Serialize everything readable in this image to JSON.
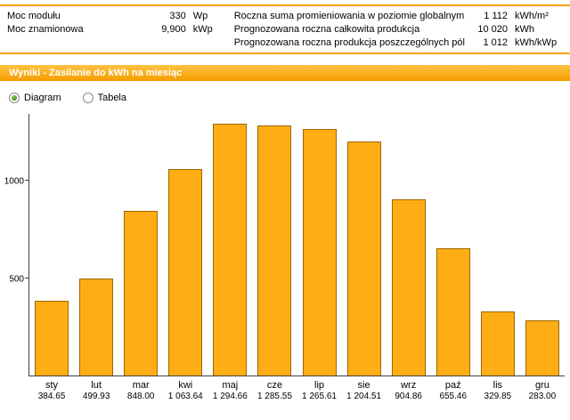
{
  "info": {
    "left": [
      {
        "label": "Moc modułu",
        "value": "330",
        "unit": "Wp"
      },
      {
        "label": "Moc znamionowa",
        "value": "9,900",
        "unit": "kWp"
      }
    ],
    "right": [
      {
        "label": "Roczna suma promieniowania w poziomie globalnym",
        "value": "1 112",
        "unit": "kWh/m²"
      },
      {
        "label": "Prognozowana roczna całkowita produkcja",
        "value": "10 020",
        "unit": "kWh"
      },
      {
        "label": "Prognozowana roczna produkcja poszczególnych pól",
        "value": "1 012",
        "unit": "kWh/kWp"
      }
    ]
  },
  "section": {
    "title": "Wyniki - Zasilanie do kWh na miesiąc"
  },
  "view_toggle": {
    "options": [
      {
        "label": "Diagram",
        "selected": true
      },
      {
        "label": "Tabela",
        "selected": false
      }
    ]
  },
  "colors": {
    "accent_orange": "#F7A300",
    "bar_fill": "#FFAD14",
    "bar_border": "#9C6700"
  },
  "chart_data": {
    "type": "bar",
    "title": "Zasilanie do kWh na miesiąc",
    "categories": [
      "sty",
      "lut",
      "mar",
      "kwi",
      "maj",
      "cze",
      "lip",
      "sie",
      "wrz",
      "paź",
      "lis",
      "gru"
    ],
    "values": [
      384.65,
      499.93,
      848.0,
      1063.64,
      1294.66,
      1285.55,
      1265.61,
      1204.51,
      904.86,
      655.46,
      329.85,
      283.0
    ],
    "value_labels": [
      "384.65",
      "499.93",
      "848.00",
      "1 063.64",
      "1 294.66",
      "1 285.55",
      "1 265.61",
      "1 204.51",
      "904.86",
      "655.46",
      "329.85",
      "283.00"
    ],
    "xlabel": "",
    "ylabel": "",
    "ylim": [
      0,
      1350
    ],
    "yticks": [
      500,
      1000
    ],
    "grid": false,
    "legend": false
  }
}
